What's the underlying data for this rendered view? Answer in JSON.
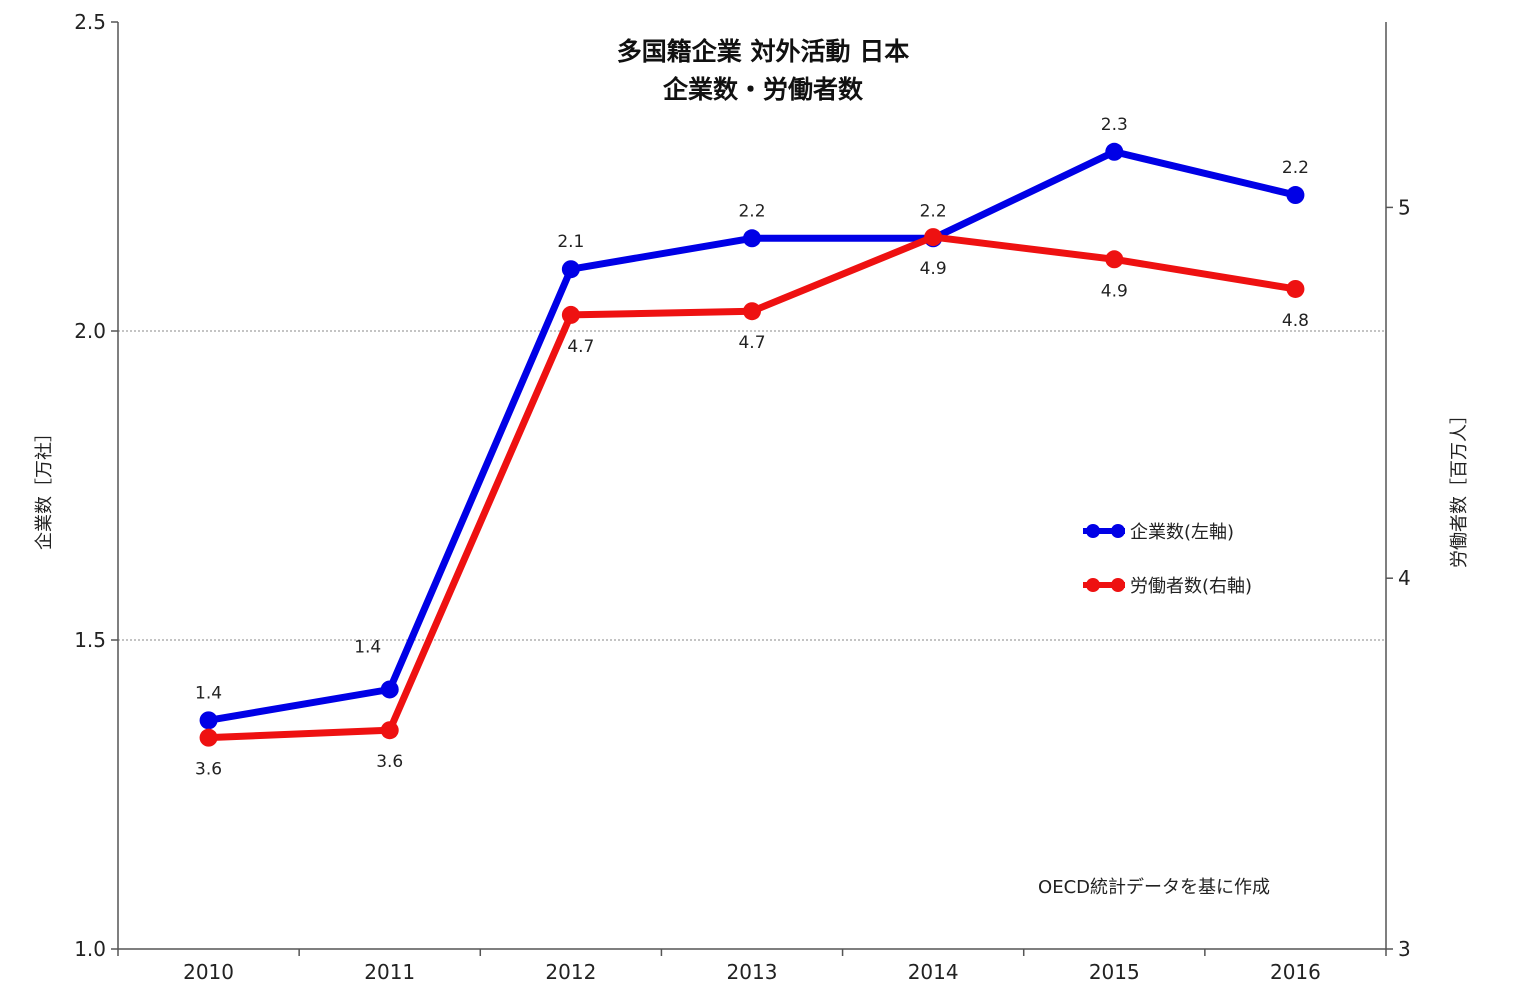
{
  "chart_data": {
    "type": "line",
    "title": "多国籍企業 対外活動 日本",
    "subtitle": "企業数・労働者数",
    "categories": [
      "2010",
      "2011",
      "2012",
      "2013",
      "2014",
      "2015",
      "2016"
    ],
    "series": [
      {
        "name": "企業数(左軸)",
        "axis": "left",
        "color": "#0000e6",
        "values": [
          1.37,
          1.42,
          2.1,
          2.15,
          2.15,
          2.29,
          2.22
        ],
        "labels": [
          "1.4",
          "1.4",
          "2.1",
          "2.2",
          "2.2",
          "2.3",
          "2.2"
        ]
      },
      {
        "name": "労働者数(右軸)",
        "axis": "right",
        "color": "#ee1111",
        "values": [
          3.57,
          3.59,
          4.71,
          4.72,
          4.92,
          4.86,
          4.78
        ],
        "labels": [
          "3.6",
          "3.6",
          "4.7",
          "4.7",
          "4.9",
          "4.9",
          "4.8"
        ]
      }
    ],
    "ylabel": "企業数［万社］",
    "y2label": "労働者数［百万人］",
    "ylim": [
      1.0,
      2.5
    ],
    "y2lim": [
      3,
      5.5
    ],
    "yticks": [
      "1.0",
      "1.5",
      "2.0",
      "2.5"
    ],
    "y2ticks": [
      "3",
      "4",
      "5"
    ],
    "grid": true,
    "legend_position": "center-right",
    "source_note": "OECD統計データを基に作成"
  }
}
